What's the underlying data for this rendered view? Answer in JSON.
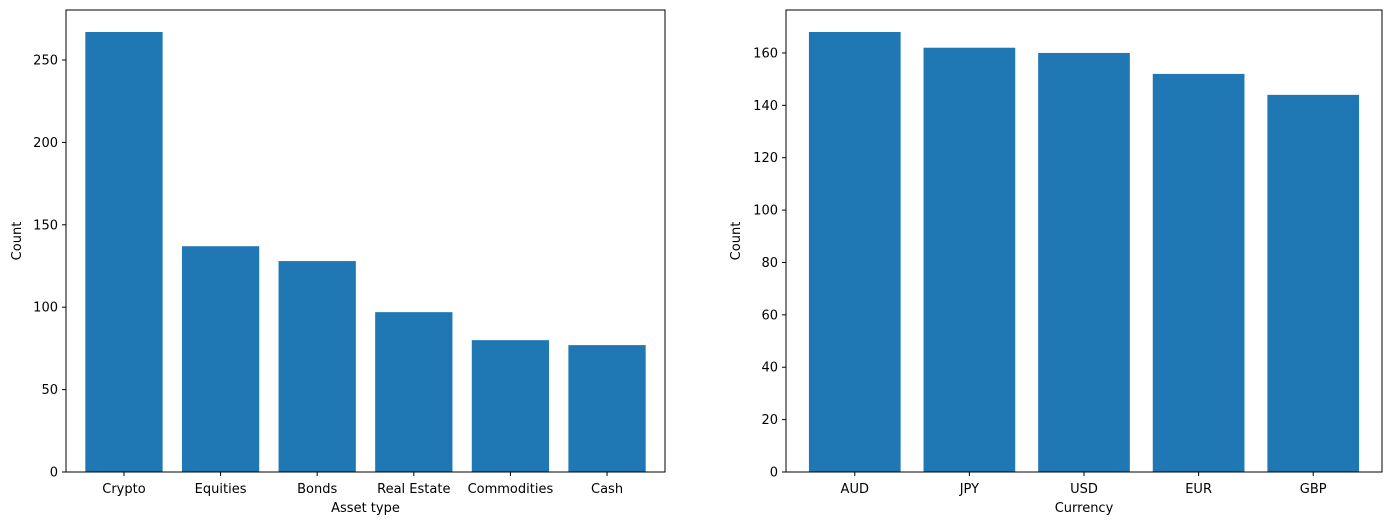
{
  "chart_data": [
    {
      "type": "bar",
      "categories": [
        "Crypto",
        "Equities",
        "Bonds",
        "Real Estate",
        "Commodities",
        "Cash"
      ],
      "values": [
        267,
        137,
        128,
        97,
        80,
        77
      ],
      "title": "",
      "xlabel": "Asset type",
      "ylabel": "Count",
      "ylim": [
        0,
        280.35
      ],
      "yticks": [
        0,
        50,
        100,
        150,
        200,
        250
      ],
      "grid": false,
      "color": "#1f77b4"
    },
    {
      "type": "bar",
      "categories": [
        "AUD",
        "JPY",
        "USD",
        "EUR",
        "GBP"
      ],
      "values": [
        168,
        162,
        160,
        152,
        144
      ],
      "title": "",
      "xlabel": "Currency",
      "ylabel": "Count",
      "ylim": [
        0,
        176.4
      ],
      "yticks": [
        0,
        20,
        40,
        60,
        80,
        100,
        120,
        140,
        160
      ],
      "grid": false,
      "color": "#1f77b4"
    }
  ]
}
